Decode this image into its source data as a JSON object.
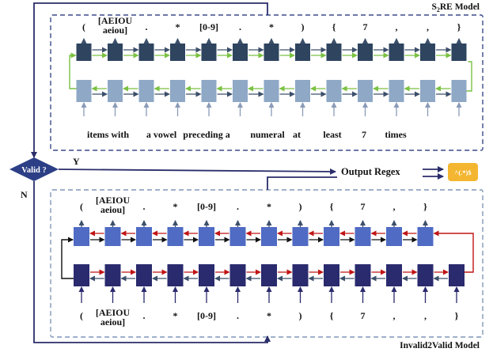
{
  "colors": {
    "top_box_border": "#3a4a88",
    "bottom_box_border": "#7f96b8",
    "top_encoder": "#8ea8c6",
    "top_decoder": "#2e445f",
    "green_arrow": "#7ac142",
    "dark_arrow": "#3c4f6a",
    "bottom_decoder": "#4f6bc3",
    "bottom_encoder": "#2a2a6e",
    "red_arrow": "#c01515",
    "black_arrow": "#111111",
    "diamond": "#2c3f86",
    "flow_line": "#2a2d6a",
    "output_badge": "#f4b630"
  },
  "top_model": {
    "title_prefix": "S",
    "title_sub": "2",
    "title_suffix": "RE Model",
    "output_tokens": [
      "(",
      "[AEIOU\naeiou]",
      ".",
      "*",
      "[0-9]",
      ".",
      "*",
      ")",
      "{",
      "7",
      ",",
      ",",
      "}"
    ],
    "input_words": [
      "items with",
      "a vowel",
      "preceding a",
      "numeral",
      "at",
      "least",
      "7",
      "times"
    ]
  },
  "bottom_model": {
    "title": "Invalid2Valid Model",
    "output_tokens": [
      "(",
      "[AEIOU\naeiou]",
      ".",
      "*",
      "[0-9]",
      ".",
      "*",
      ")",
      "{",
      "7",
      ",",
      "}"
    ],
    "input_tokens": [
      "(",
      "[AEIOU\naeiou]",
      ".",
      "*",
      "[0-9]",
      ".",
      "*",
      ")",
      "{",
      "7",
      ",",
      ",",
      "}"
    ]
  },
  "decision": {
    "label": "Valid ?",
    "yes": "Y",
    "no": "N"
  },
  "output": {
    "label": "Output Regex",
    "badge": "^(.*)$"
  }
}
